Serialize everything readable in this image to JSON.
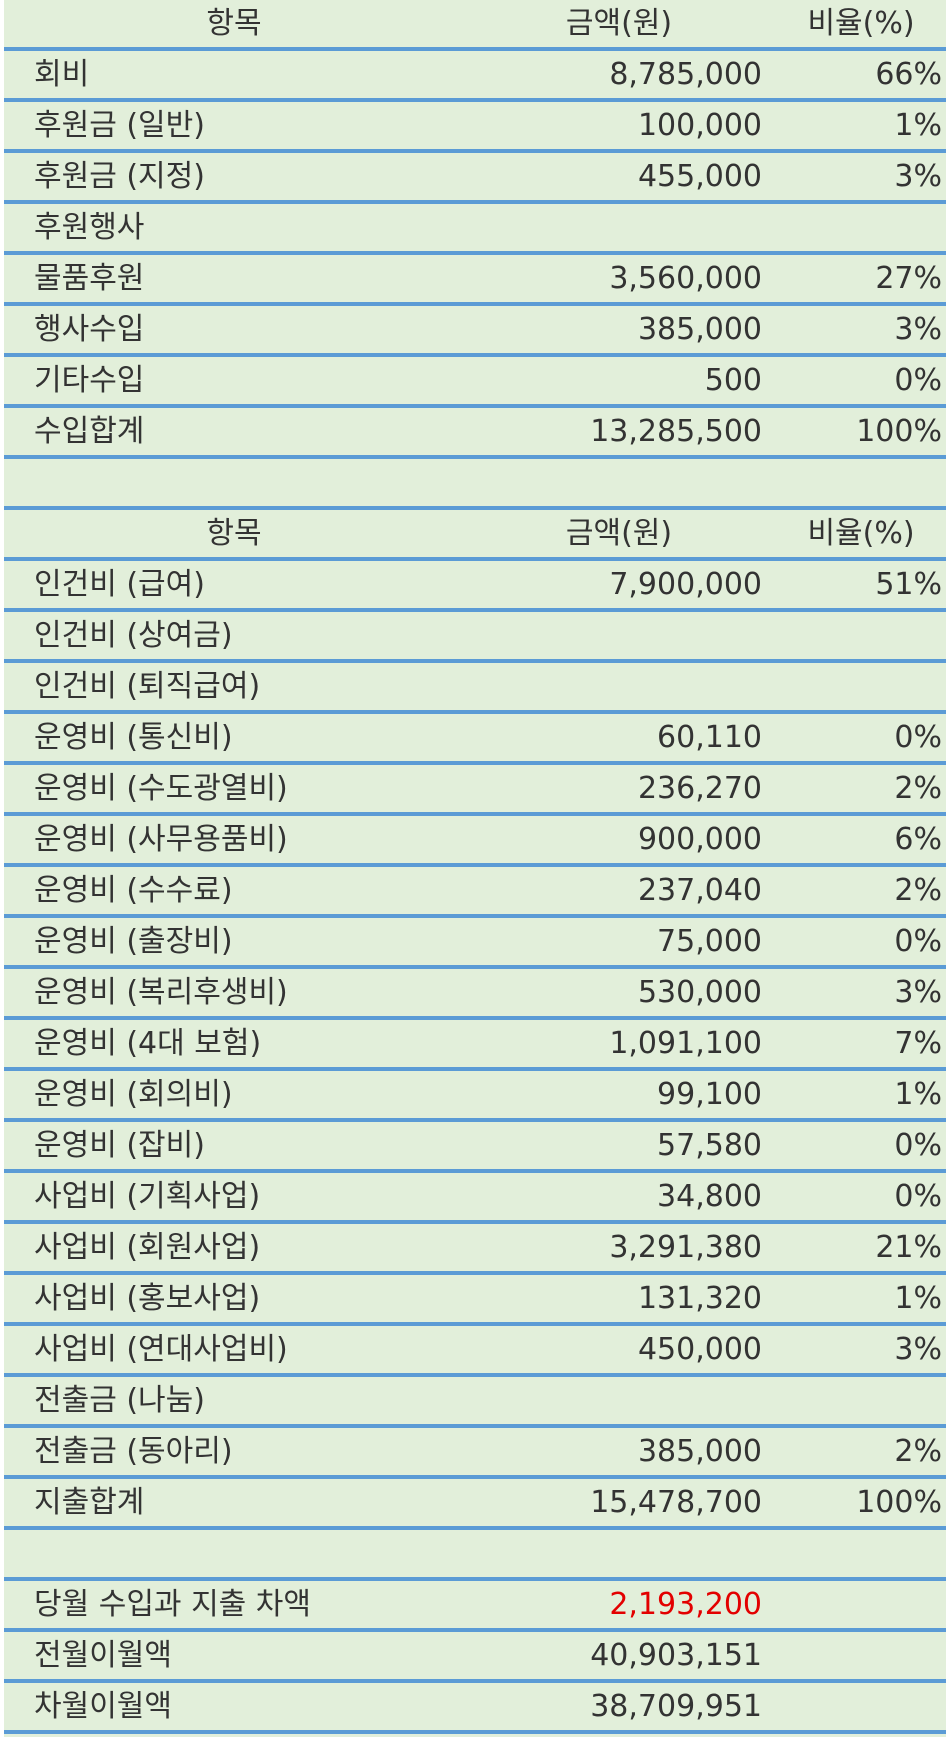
{
  "colors": {
    "background": "#e2efda",
    "rule": "#5b9bd5",
    "text": "#333333",
    "negative": "#e30000"
  },
  "income": {
    "header": {
      "item": "항목",
      "amount": "금액(원)",
      "ratio": "비율(%)"
    },
    "rows": [
      {
        "item": "회비",
        "amount": "8,785,000",
        "ratio": "66%"
      },
      {
        "item": "후원금 (일반)",
        "amount": "100,000",
        "ratio": "1%"
      },
      {
        "item": "후원금 (지정)",
        "amount": "455,000",
        "ratio": "3%"
      },
      {
        "item": "후원행사",
        "amount": "",
        "ratio": ""
      },
      {
        "item": "물품후원",
        "amount": "3,560,000",
        "ratio": "27%"
      },
      {
        "item": "행사수입",
        "amount": "385,000",
        "ratio": "3%"
      },
      {
        "item": "기타수입",
        "amount": "500",
        "ratio": "0%"
      },
      {
        "item": "수입합계",
        "amount": "13,285,500",
        "ratio": "100%"
      }
    ]
  },
  "expense": {
    "header": {
      "item": "항목",
      "amount": "금액(원)",
      "ratio": "비율(%)"
    },
    "rows": [
      {
        "item": "인건비 (급여)",
        "amount": "7,900,000",
        "ratio": "51%"
      },
      {
        "item": "인건비 (상여금)",
        "amount": "",
        "ratio": ""
      },
      {
        "item": "인건비 (퇴직급여)",
        "amount": "",
        "ratio": ""
      },
      {
        "item": "운영비 (통신비)",
        "amount": "60,110",
        "ratio": "0%"
      },
      {
        "item": "운영비 (수도광열비)",
        "amount": "236,270",
        "ratio": "2%"
      },
      {
        "item": "운영비 (사무용품비)",
        "amount": "900,000",
        "ratio": "6%"
      },
      {
        "item": "운영비 (수수료)",
        "amount": "237,040",
        "ratio": "2%"
      },
      {
        "item": "운영비 (출장비)",
        "amount": "75,000",
        "ratio": "0%"
      },
      {
        "item": "운영비 (복리후생비)",
        "amount": "530,000",
        "ratio": "3%"
      },
      {
        "item": "운영비 (4대 보험)",
        "amount": "1,091,100",
        "ratio": "7%"
      },
      {
        "item": "운영비 (회의비)",
        "amount": "99,100",
        "ratio": "1%"
      },
      {
        "item": "운영비 (잡비)",
        "amount": "57,580",
        "ratio": "0%"
      },
      {
        "item": "사업비 (기획사업)",
        "amount": "34,800",
        "ratio": "0%"
      },
      {
        "item": "사업비 (회원사업)",
        "amount": "3,291,380",
        "ratio": "21%"
      },
      {
        "item": "사업비 (홍보사업)",
        "amount": "131,320",
        "ratio": "1%"
      },
      {
        "item": "사업비 (연대사업비)",
        "amount": "450,000",
        "ratio": "3%"
      },
      {
        "item": "전출금 (나눔)",
        "amount": "",
        "ratio": ""
      },
      {
        "item": "전출금 (동아리)",
        "amount": "385,000",
        "ratio": "2%"
      },
      {
        "item": "지출합계",
        "amount": "15,478,700",
        "ratio": "100%"
      }
    ]
  },
  "summary": {
    "rows": [
      {
        "item": "당월 수입과 지출 차액",
        "amount": "2,193,200",
        "negative": true
      },
      {
        "item": "전월이월액",
        "amount": "40,903,151",
        "negative": false
      },
      {
        "item": "차월이월액",
        "amount": "38,709,951",
        "negative": false
      }
    ]
  }
}
